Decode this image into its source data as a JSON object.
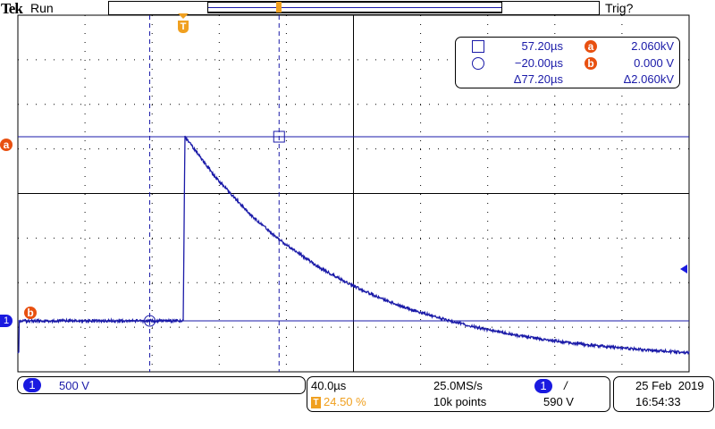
{
  "header": {
    "brand": "Tek",
    "status": "Run",
    "trigger_status": "Trig?"
  },
  "cursor_readout": {
    "cursor1_time": "57.20µs",
    "cursor1_label": "a",
    "cursor1_value": "2.060kV",
    "cursor2_time": "−20.00µs",
    "cursor2_label": "b",
    "cursor2_value": "0.000 V",
    "delta_time": "Δ77.20µs",
    "delta_value": "Δ2.060kV"
  },
  "channel": {
    "number": "1",
    "scale": "500 V",
    "color": "#1a1aa8"
  },
  "horizontal": {
    "time_per_div": "40.0µs",
    "trigger_position": "24.50 %",
    "sample_rate": "25.0MS/s",
    "record_length": "10k points",
    "trigger_icon": "T"
  },
  "trigger": {
    "source": "1",
    "slope": "/",
    "level": "590 V"
  },
  "datetime": {
    "date": "25 Feb  2019",
    "time": "16:54:33"
  },
  "markers": {
    "cursor_a": "a",
    "cursor_b": "b",
    "ground": "1",
    "trigger": "T"
  },
  "colors": {
    "trace": "#1a1aa8",
    "cursor": "#1a1aa8",
    "trigger": "#f0a020",
    "badge": "#e85010"
  },
  "chart_data": {
    "type": "line",
    "xlabel": "",
    "ylabel": "",
    "x_unit": "µs",
    "y_unit": "V",
    "xlim": [
      -98.7,
      301.9
    ],
    "ylim": [
      -2000,
      2000
    ],
    "x_div": 40,
    "y_div": 500,
    "grid": true,
    "series": [
      {
        "x": [
          -98,
          -20,
          0,
          1,
          20,
          40,
          57.2,
          80,
          100,
          120,
          140,
          160,
          180,
          200,
          220,
          240,
          260,
          280,
          300
        ],
        "y": [
          0,
          0,
          0,
          2060,
          1591,
          1191,
          910,
          611,
          403,
          235,
          102,
          -5,
          -94,
          -164,
          -220,
          -265,
          -301,
          -331,
          -354
        ]
      }
    ],
    "cursors": {
      "time": [
        -20,
        57.2
      ],
      "voltage": [
        2060,
        0
      ]
    },
    "trigger_level": 590
  }
}
